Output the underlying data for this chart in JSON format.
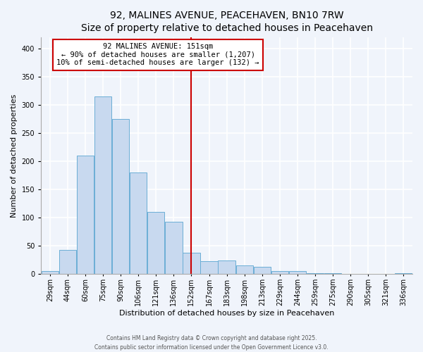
{
  "title": "92, MALINES AVENUE, PEACEHAVEN, BN10 7RW",
  "subtitle": "Size of property relative to detached houses in Peacehaven",
  "xlabel": "Distribution of detached houses by size in Peacehaven",
  "ylabel": "Number of detached properties",
  "bar_labels": [
    "29sqm",
    "44sqm",
    "60sqm",
    "75sqm",
    "90sqm",
    "106sqm",
    "121sqm",
    "136sqm",
    "152sqm",
    "167sqm",
    "183sqm",
    "198sqm",
    "213sqm",
    "229sqm",
    "244sqm",
    "259sqm",
    "275sqm",
    "290sqm",
    "305sqm",
    "321sqm",
    "336sqm"
  ],
  "bar_values": [
    5,
    43,
    210,
    315,
    275,
    180,
    110,
    93,
    38,
    23,
    24,
    16,
    13,
    5,
    5,
    2,
    2,
    1,
    0,
    0,
    2
  ],
  "bar_color": "#c8d9ef",
  "bar_edge_color": "#6baed6",
  "vline_color": "#cc0000",
  "annotation_title": "92 MALINES AVENUE: 151sqm",
  "annotation_line1": "← 90% of detached houses are smaller (1,207)",
  "annotation_line2": "10% of semi-detached houses are larger (132) →",
  "annotation_box_edgecolor": "#cc0000",
  "ylim": [
    0,
    420
  ],
  "yticks": [
    0,
    50,
    100,
    150,
    200,
    250,
    300,
    350,
    400
  ],
  "footer1": "Contains HM Land Registry data © Crown copyright and database right 2025.",
  "footer2": "Contains public sector information licensed under the Open Government Licence v3.0.",
  "bg_color": "#f0f4fb",
  "plot_bg_color": "#f0f4fb",
  "grid_color": "#ffffff",
  "title_fontsize": 10,
  "subtitle_fontsize": 9,
  "ylabel_fontsize": 8,
  "xlabel_fontsize": 8,
  "tick_fontsize": 7,
  "annotation_fontsize": 7.5,
  "footer_fontsize": 5.5,
  "vline_bar_index": 8
}
